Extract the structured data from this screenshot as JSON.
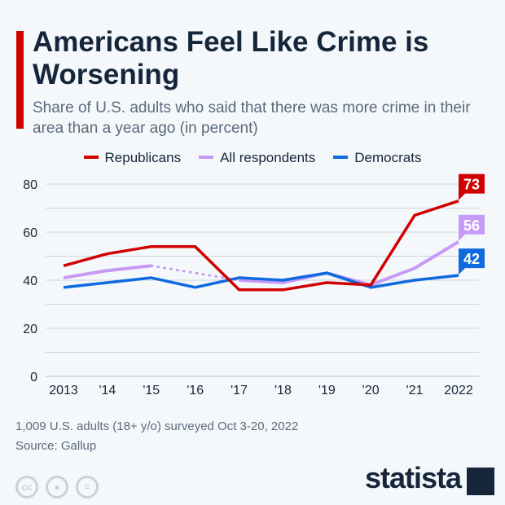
{
  "header": {
    "title": "Americans Feel Like Crime is Worsening",
    "subtitle": "Share of U.S. adults who said that there was more crime in their area than a year ago (in percent)"
  },
  "chart_data": {
    "type": "line",
    "categories": [
      "2013",
      "'14",
      "'15",
      "'16",
      "'17",
      "'18",
      "'19",
      "'20",
      "'21",
      "2022"
    ],
    "ylim": [
      0,
      80
    ],
    "yticks": [
      0,
      20,
      40,
      60,
      80
    ],
    "grid": true,
    "legend_placement": "top",
    "series": [
      {
        "name": "Republicans",
        "color": "#d10000",
        "values": [
          46,
          51,
          54,
          54,
          36,
          36,
          39,
          38,
          67,
          73
        ],
        "end_label": "73"
      },
      {
        "name": "All respondents",
        "color": "#c79af5",
        "values": [
          41,
          44,
          46,
          null,
          40,
          39,
          43,
          38,
          45,
          56
        ],
        "end_label": "56"
      },
      {
        "name": "Democrats",
        "color": "#0e6ade",
        "values": [
          37,
          39,
          41,
          37,
          41,
          40,
          43,
          37,
          40,
          42
        ],
        "end_label": "42"
      }
    ]
  },
  "footer": {
    "note": "1,009 U.S. adults (18+ y/o) surveyed Oct 3-20, 2022",
    "source": "Source: Gallup",
    "brand": "statista",
    "license_icons": [
      "cc-icon",
      "by-icon",
      "nd-icon"
    ]
  }
}
